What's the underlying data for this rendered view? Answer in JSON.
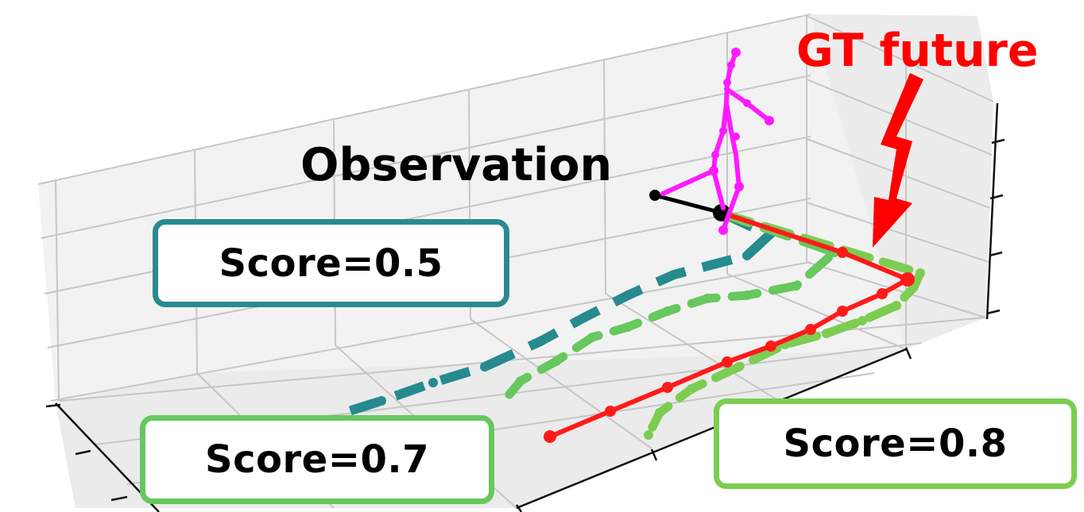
{
  "labels": {
    "observation": "Observation",
    "gt_future": "GT future"
  },
  "score_boxes": [
    {
      "text": "Score=0.5",
      "trajectory": "teal dashed",
      "border_color": "#2a8a8f"
    },
    {
      "text": "Score=0.7",
      "trajectory": "green dashed",
      "border_color": "#66c85e"
    },
    {
      "text": "Score=0.8",
      "trajectory": "light green dashed",
      "border_color": "#7ccd52"
    }
  ],
  "colors": {
    "gt_future": "#ff1a1a",
    "observation": "#000000",
    "skeleton": "#ff1aff",
    "prediction_score_0_5": "#268a8e",
    "prediction_score_0_7": "#66c85e",
    "prediction_score_0_8": "#7ccd52",
    "arrow": "#ff0000"
  }
}
